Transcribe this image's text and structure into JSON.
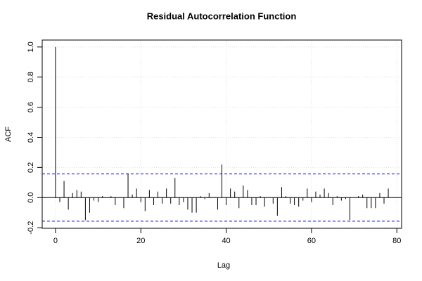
{
  "chart_data": {
    "type": "acf",
    "title": "Residual Autocorrelation Function",
    "x_label": "Lag",
    "y_label": "ACF",
    "x": [
      0,
      1,
      2,
      3,
      4,
      5,
      6,
      7,
      8,
      9,
      10,
      11,
      12,
      13,
      14,
      15,
      16,
      17,
      18,
      19,
      20,
      21,
      22,
      23,
      24,
      25,
      26,
      27,
      28,
      29,
      30,
      31,
      32,
      33,
      34,
      35,
      36,
      37,
      38,
      39,
      40,
      41,
      42,
      43,
      44,
      45,
      46,
      47,
      48,
      49,
      50,
      51,
      52,
      53,
      54,
      55,
      56,
      57,
      58,
      59,
      60,
      61,
      62,
      63,
      64,
      65,
      66,
      67,
      68,
      69,
      70,
      71,
      72,
      73,
      74,
      75,
      76,
      77,
      78
    ],
    "values": [
      1.0,
      -0.03,
      0.11,
      -0.08,
      0.03,
      0.05,
      0.04,
      -0.15,
      -0.1,
      -0.02,
      -0.03,
      0.01,
      0.0,
      0.01,
      -0.05,
      0.0,
      -0.07,
      0.16,
      0.02,
      0.06,
      -0.03,
      -0.09,
      0.05,
      -0.05,
      0.04,
      -0.04,
      0.06,
      -0.04,
      0.13,
      -0.05,
      -0.03,
      -0.08,
      -0.1,
      -0.1,
      0.01,
      -0.01,
      0.03,
      0.0,
      -0.08,
      0.22,
      -0.05,
      0.06,
      0.04,
      -0.07,
      0.08,
      0.05,
      -0.05,
      -0.05,
      0.01,
      -0.06,
      0.0,
      -0.04,
      -0.12,
      0.07,
      0.01,
      -0.04,
      -0.05,
      -0.06,
      -0.02,
      0.06,
      -0.03,
      0.04,
      0.02,
      0.06,
      0.03,
      -0.05,
      0.01,
      -0.02,
      -0.01,
      -0.15,
      0.0,
      0.01,
      0.02,
      -0.07,
      -0.07,
      -0.07,
      0.03,
      -0.04,
      0.06
    ],
    "color": "#000000",
    "confidence_bounds": [
      -0.157,
      0.157
    ],
    "confidence_color": "#0000ff",
    "xlim": [
      -3.12,
      81.12
    ],
    "xticks": [
      0,
      20,
      40,
      60,
      80
    ],
    "ylim": [
      -0.204,
      1.046
    ],
    "yticks": [
      {
        "value": -0.2,
        "label": "-0.2"
      },
      {
        "value": 0,
        "label": "0.0"
      },
      {
        "value": 0.2,
        "label": "0.2"
      },
      {
        "value": 0.4,
        "label": "0.4"
      },
      {
        "value": 0.6,
        "label": "0.6"
      },
      {
        "value": 0.8,
        "label": "0.8"
      },
      {
        "value": 1,
        "label": "1.0"
      }
    ],
    "grid": true
  }
}
